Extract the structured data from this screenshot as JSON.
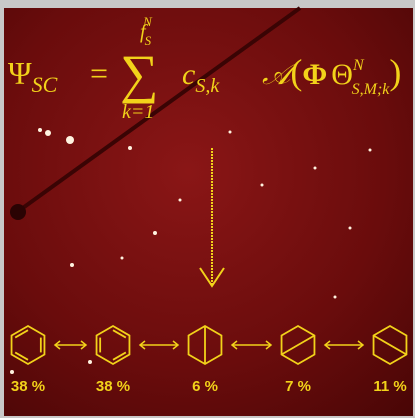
{
  "formula": {
    "psi": "Ψ",
    "psi_sub": "SC",
    "equals": "=",
    "sum": "∑",
    "upper": "f",
    "upper_sub": "S",
    "upper_sup": "N",
    "lower": "k=1",
    "coef": "c",
    "coef_sub": "S,k",
    "op": "𝒜",
    "open": "(",
    "phi": "Φ",
    "theta": "Θ",
    "theta_sup": "N",
    "theta_sub": "S,M;k",
    "close": ")"
  },
  "structures": [
    {
      "weight": "38 %"
    },
    {
      "weight": "38 %"
    },
    {
      "weight": "6 %"
    },
    {
      "weight": "7 %"
    },
    {
      "weight": "11 %"
    }
  ]
}
